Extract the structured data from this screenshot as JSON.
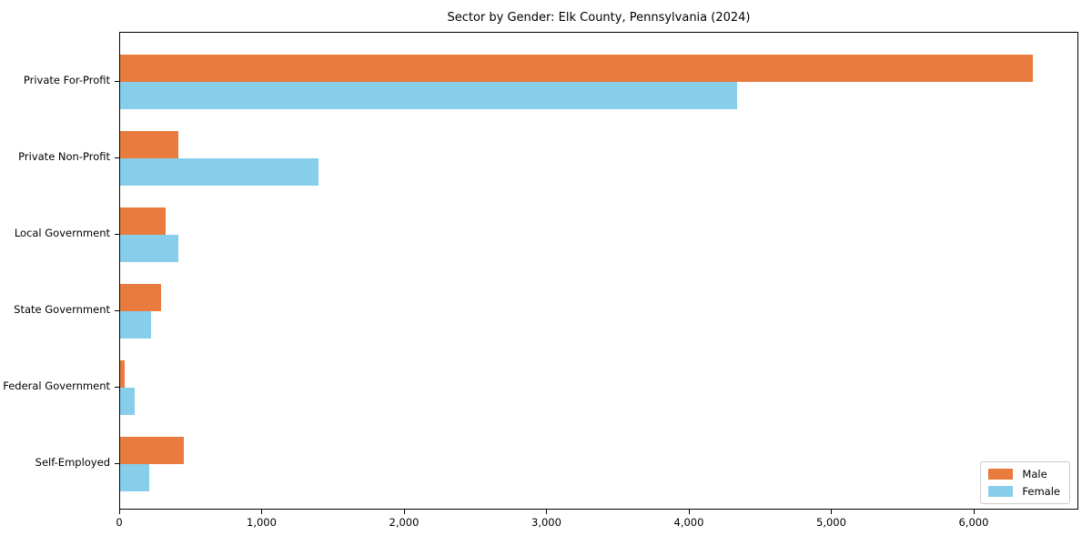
{
  "chart_data": {
    "type": "bar",
    "orientation": "horizontal",
    "title": "Sector by Gender: Elk County, Pennsylvania (2024)",
    "categories": [
      "Private For-Profit",
      "Private Non-Profit",
      "Local Government",
      "State Government",
      "Federal Government",
      "Self-Employed"
    ],
    "series": [
      {
        "name": "Male",
        "color": "#e87b3d",
        "values": [
          6410,
          410,
          320,
          290,
          30,
          450
        ]
      },
      {
        "name": "Female",
        "color": "#87ceeb",
        "values": [
          4330,
          1390,
          410,
          220,
          100,
          205
        ]
      }
    ],
    "xlabel": "",
    "ylabel": "",
    "xlim": [
      0,
      6735
    ],
    "xticks": [
      0,
      1000,
      2000,
      3000,
      4000,
      5000,
      6000
    ],
    "xtick_labels": [
      "0",
      "1,000",
      "2,000",
      "3,000",
      "4,000",
      "5,000",
      "6,000"
    ],
    "legend_position": "lower right",
    "grid": false,
    "background": "#ffffff",
    "spine_color": "#000000"
  }
}
